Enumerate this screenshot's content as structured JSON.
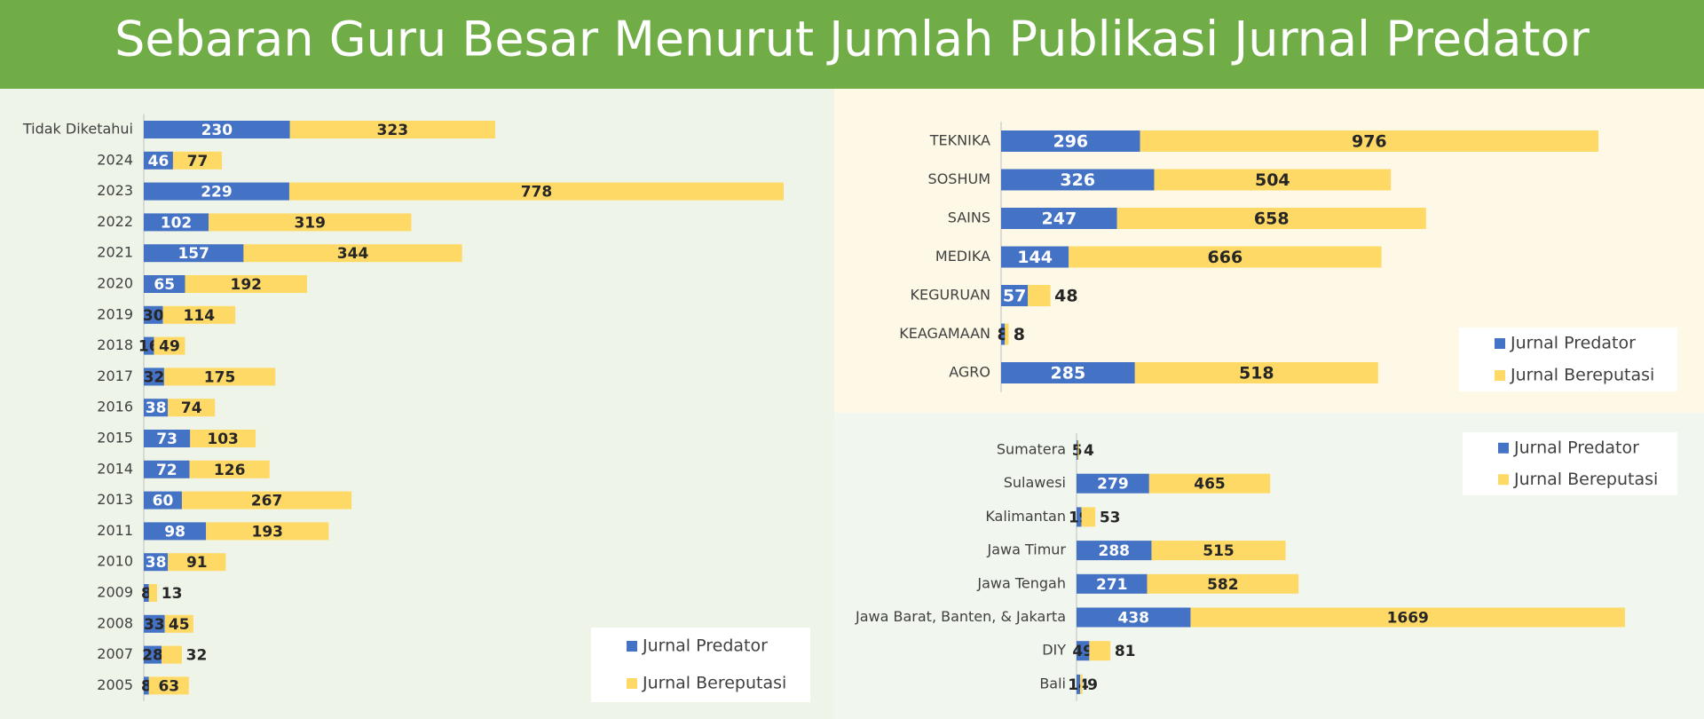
{
  "title": "Sebaran Guru Besar Menurut Jumlah Publikasi Jurnal Predator",
  "chart_data": [
    {
      "type": "bar",
      "orientation": "horizontal",
      "stacked": true,
      "legend": "lower right",
      "categories": [
        "Tidak Diketahui",
        "2024",
        "2023",
        "2022",
        "2021",
        "2020",
        "2019",
        "2018",
        "2017",
        "2016",
        "2015",
        "2014",
        "2013",
        "2011",
        "2010",
        "2009",
        "2008",
        "2007",
        "2005"
      ],
      "series": [
        {
          "name": "Jurnal Predator",
          "color": "#4472c4",
          "values": [
            230,
            46,
            229,
            102,
            157,
            65,
            30,
            16,
            32,
            38,
            73,
            72,
            60,
            98,
            38,
            8,
            33,
            28,
            8
          ]
        },
        {
          "name": "Jurnal Bereputasi",
          "color": "#ffd966",
          "values": [
            323,
            77,
            778,
            319,
            344,
            192,
            114,
            49,
            175,
            74,
            103,
            126,
            267,
            193,
            91,
            13,
            45,
            32,
            63
          ]
        }
      ]
    },
    {
      "type": "bar",
      "orientation": "horizontal",
      "stacked": true,
      "legend": "lower right",
      "categories": [
        "TEKNIKA",
        "SOSHUM",
        "SAINS",
        "MEDIKA",
        "KEGURUAN",
        "KEAGAMAAN",
        "AGRO"
      ],
      "series": [
        {
          "name": "Jurnal Predator",
          "color": "#4472c4",
          "values": [
            296,
            326,
            247,
            144,
            57,
            8,
            285
          ]
        },
        {
          "name": "Jurnal Bereputasi",
          "color": "#ffd966",
          "values": [
            976,
            504,
            658,
            666,
            48,
            8,
            518
          ]
        }
      ]
    },
    {
      "type": "bar",
      "orientation": "horizontal",
      "stacked": true,
      "legend": "upper right",
      "categories": [
        "Sumatera",
        "Sulawesi",
        "Kalimantan",
        "Jawa Timur",
        "Jawa Tengah",
        "Jawa Barat, Banten, & Jakarta",
        "DIY",
        "Bali"
      ],
      "series": [
        {
          "name": "Jurnal Predator",
          "color": "#4472c4",
          "values": [
            5,
            279,
            19,
            288,
            271,
            438,
            49,
            14
          ]
        },
        {
          "name": "Jurnal Bereputasi",
          "color": "#ffd966",
          "values": [
            4,
            465,
            53,
            515,
            582,
            1669,
            81,
            9
          ]
        }
      ]
    }
  ]
}
